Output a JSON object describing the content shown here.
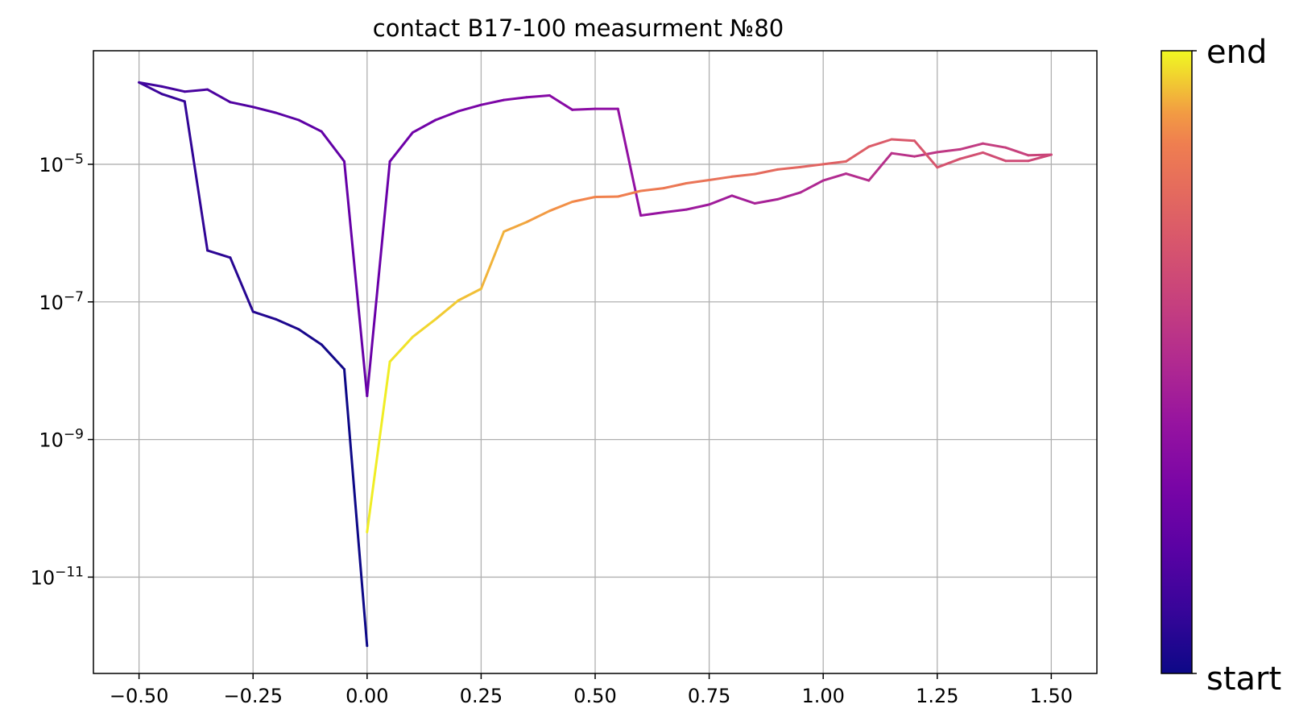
{
  "chart_data": {
    "type": "line",
    "title": "contact B17-100 measurment №80",
    "xlabel": "",
    "ylabel": "",
    "xlim": [
      -0.6,
      1.6
    ],
    "ylim_log10": [
      -12.4,
      -3.35
    ],
    "yscale": "log",
    "grid": true,
    "x_ticks": [
      -0.5,
      -0.25,
      0.0,
      0.25,
      0.5,
      0.75,
      1.0,
      1.25,
      1.5
    ],
    "x_tick_labels": [
      "−0.50",
      "−0.25",
      "0.00",
      "0.25",
      "0.50",
      "0.75",
      "1.00",
      "1.25",
      "1.50"
    ],
    "y_ticks": [
      {
        "base": "10",
        "exp": "−5",
        "log10": -5
      },
      {
        "base": "10",
        "exp": "−7",
        "log10": -7
      },
      {
        "base": "10",
        "exp": "−9",
        "log10": -9
      },
      {
        "base": "10",
        "exp": "−11",
        "log10": -11
      }
    ],
    "colormap": "plasma",
    "colorbar": {
      "low_label": "start",
      "high_label": "end"
    },
    "series": [
      {
        "points": [
          [
            0.0,
            1e-12
          ],
          [
            -0.05,
            1.05e-08
          ],
          [
            -0.1,
            2.4e-08
          ],
          [
            -0.15,
            4e-08
          ],
          [
            -0.2,
            5.6e-08
          ],
          [
            -0.25,
            7.2e-08
          ],
          [
            -0.3,
            4.4e-07
          ],
          [
            -0.35,
            5.6e-07
          ],
          [
            -0.4,
            8.2e-05
          ],
          [
            -0.45,
            0.000105
          ],
          [
            -0.5,
            0.000155
          ],
          [
            -0.45,
            0.000135
          ],
          [
            -0.4,
            0.000114
          ],
          [
            -0.35,
            0.000122
          ],
          [
            -0.3,
            8e-05
          ],
          [
            -0.25,
            6.8e-05
          ],
          [
            -0.2,
            5.6e-05
          ],
          [
            -0.15,
            4.4e-05
          ],
          [
            -0.1,
            3e-05
          ],
          [
            -0.05,
            1.1e-05
          ],
          [
            0.0,
            4.3e-09
          ],
          [
            0.05,
            1.1e-05
          ],
          [
            0.1,
            2.9e-05
          ],
          [
            0.15,
            4.4e-05
          ],
          [
            0.2,
            5.9e-05
          ],
          [
            0.25,
            7.3e-05
          ],
          [
            0.3,
            8.6e-05
          ],
          [
            0.35,
            9.4e-05
          ],
          [
            0.4,
            0.0001
          ],
          [
            0.45,
            6.2e-05
          ],
          [
            0.5,
            6.4e-05
          ],
          [
            0.55,
            6.4e-05
          ],
          [
            0.6,
            1.8e-06
          ],
          [
            0.65,
            2e-06
          ],
          [
            0.7,
            2.2e-06
          ],
          [
            0.75,
            2.6e-06
          ],
          [
            0.8,
            3.5e-06
          ],
          [
            0.85,
            2.7e-06
          ],
          [
            0.9,
            3.1e-06
          ],
          [
            0.95,
            3.9e-06
          ],
          [
            1.0,
            5.8e-06
          ],
          [
            1.05,
            7.3e-06
          ],
          [
            1.1,
            5.8e-06
          ],
          [
            1.15,
            1.45e-05
          ],
          [
            1.2,
            1.3e-05
          ],
          [
            1.25,
            1.5e-05
          ],
          [
            1.3,
            1.65e-05
          ],
          [
            1.35,
            2e-05
          ],
          [
            1.4,
            1.75e-05
          ],
          [
            1.45,
            1.35e-05
          ],
          [
            1.5,
            1.38e-05
          ],
          [
            1.45,
            1.12e-05
          ],
          [
            1.4,
            1.12e-05
          ],
          [
            1.35,
            1.48e-05
          ],
          [
            1.3,
            1.2e-05
          ],
          [
            1.25,
            9e-06
          ],
          [
            1.2,
            2.2e-05
          ],
          [
            1.15,
            2.3e-05
          ],
          [
            1.1,
            1.8e-05
          ],
          [
            1.05,
            1.1e-05
          ],
          [
            1.0,
            1e-05
          ],
          [
            0.95,
            9.1e-06
          ],
          [
            0.9,
            8.4e-06
          ],
          [
            0.85,
            7.2e-06
          ],
          [
            0.8,
            6.6e-06
          ],
          [
            0.75,
            5.9e-06
          ],
          [
            0.7,
            5.3e-06
          ],
          [
            0.65,
            4.5e-06
          ],
          [
            0.6,
            4.1e-06
          ],
          [
            0.55,
            3.4e-06
          ],
          [
            0.5,
            3.35e-06
          ],
          [
            0.45,
            2.85e-06
          ],
          [
            0.4,
            2.1e-06
          ],
          [
            0.35,
            1.45e-06
          ],
          [
            0.3,
            1.05e-06
          ],
          [
            0.25,
            1.55e-07
          ],
          [
            0.2,
            1.05e-07
          ],
          [
            0.15,
            5.6e-08
          ],
          [
            0.1,
            3.1e-08
          ],
          [
            0.05,
            1.35e-08
          ],
          [
            0.0,
            4.5e-11
          ]
        ]
      }
    ]
  }
}
